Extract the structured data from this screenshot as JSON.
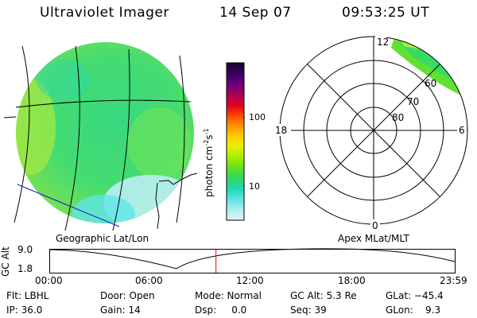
{
  "header": {
    "instrument": "Ultraviolet Imager",
    "date": "14 Sep 07",
    "time": "09:53:25 UT"
  },
  "colorbar": {
    "unit_label": "photon cm",
    "unit_sup1": "-2",
    "unit_s": "s",
    "unit_sup2": "-1",
    "tick_100": "100",
    "tick_10": "10",
    "colors": [
      "#1a0030",
      "#3a0060",
      "#70007a",
      "#b00050",
      "#e00020",
      "#ff4000",
      "#ff9000",
      "#ffd000",
      "#e8f000",
      "#a8ec00",
      "#60e020",
      "#30d860",
      "#20d8b0",
      "#60e4e8",
      "#a8eef2",
      "#e0f6f8"
    ]
  },
  "left_panel": {
    "caption": "Geographic Lat/Lon"
  },
  "right_panel": {
    "caption": "Apex MLat/MLT",
    "mlt_12": "12",
    "mlt_18": "18",
    "mlt_6": "6",
    "mlt_0": "0",
    "lat_60": "60",
    "lat_70": "70",
    "lat_80": "80"
  },
  "altitude_plot": {
    "ylabel": "GC Alt",
    "ytick_top": "9.0",
    "ytick_bottom": "1.8",
    "xticks": [
      "00:00",
      "06:00",
      "12:00",
      "18:00",
      "23:59"
    ],
    "current_time_fraction": 0.41
  },
  "footer": {
    "rows": [
      [
        "Flt: LBHL",
        "Door: Open",
        "Mode: Normal",
        "GC Alt: 5.3 Re",
        "GLat: −45.4"
      ],
      [
        "IP: 36.0",
        "Gain: 14",
        "Dsp:     0.0",
        "Seq: 39",
        "GLon:    9.3"
      ]
    ]
  }
}
